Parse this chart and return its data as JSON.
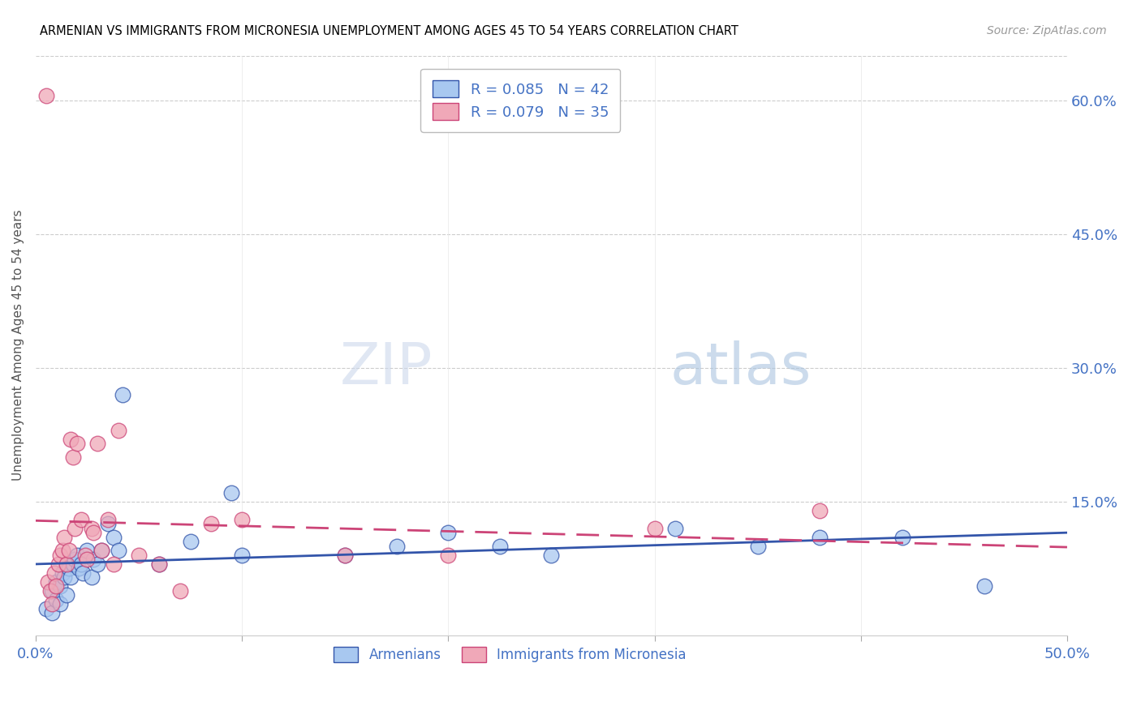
{
  "title": "ARMENIAN VS IMMIGRANTS FROM MICRONESIA UNEMPLOYMENT AMONG AGES 45 TO 54 YEARS CORRELATION CHART",
  "source": "Source: ZipAtlas.com",
  "ylabel": "Unemployment Among Ages 45 to 54 years",
  "xlim": [
    0.0,
    0.5
  ],
  "ylim": [
    0.0,
    0.65
  ],
  "xticks": [
    0.0,
    0.1,
    0.2,
    0.3,
    0.4,
    0.5
  ],
  "xtick_labels": [
    "0.0%",
    "",
    "",
    "",
    "",
    "50.0%"
  ],
  "ytick_labels_right": [
    "60.0%",
    "45.0%",
    "30.0%",
    "15.0%"
  ],
  "ytick_vals_right": [
    0.6,
    0.45,
    0.3,
    0.15
  ],
  "legend_color1": "#a8c8f0",
  "legend_color2": "#f0a8b8",
  "color_armenian": "#a8c8f0",
  "color_micronesia": "#f0a8b8",
  "trend_color_armenian": "#3355aa",
  "trend_color_micronesia": "#cc4477",
  "background_color": "#ffffff",
  "grid_color": "#cccccc",
  "axis_label_color": "#4472c4",
  "title_color": "#000000",
  "armenian_x": [
    0.005,
    0.008,
    0.008,
    0.01,
    0.01,
    0.012,
    0.012,
    0.013,
    0.014,
    0.015,
    0.015,
    0.016,
    0.017,
    0.018,
    0.019,
    0.02,
    0.021,
    0.022,
    0.023,
    0.025,
    0.027,
    0.028,
    0.03,
    0.032,
    0.035,
    0.038,
    0.04,
    0.042,
    0.06,
    0.075,
    0.095,
    0.1,
    0.15,
    0.175,
    0.2,
    0.225,
    0.25,
    0.31,
    0.35,
    0.38,
    0.42,
    0.46
  ],
  "armenian_y": [
    0.03,
    0.025,
    0.05,
    0.04,
    0.06,
    0.035,
    0.055,
    0.07,
    0.065,
    0.08,
    0.045,
    0.075,
    0.065,
    0.08,
    0.085,
    0.09,
    0.075,
    0.08,
    0.07,
    0.095,
    0.065,
    0.085,
    0.08,
    0.095,
    0.125,
    0.11,
    0.095,
    0.27,
    0.08,
    0.105,
    0.16,
    0.09,
    0.09,
    0.1,
    0.115,
    0.1,
    0.09,
    0.12,
    0.1,
    0.11,
    0.11,
    0.055
  ],
  "micronesia_x": [
    0.005,
    0.006,
    0.007,
    0.008,
    0.009,
    0.01,
    0.011,
    0.012,
    0.013,
    0.014,
    0.015,
    0.016,
    0.017,
    0.018,
    0.019,
    0.02,
    0.022,
    0.024,
    0.025,
    0.027,
    0.028,
    0.03,
    0.032,
    0.035,
    0.038,
    0.04,
    0.05,
    0.06,
    0.07,
    0.085,
    0.1,
    0.15,
    0.2,
    0.3,
    0.38
  ],
  "micronesia_y": [
    0.605,
    0.06,
    0.05,
    0.035,
    0.07,
    0.055,
    0.08,
    0.09,
    0.095,
    0.11,
    0.08,
    0.095,
    0.22,
    0.2,
    0.12,
    0.215,
    0.13,
    0.09,
    0.085,
    0.12,
    0.115,
    0.215,
    0.095,
    0.13,
    0.08,
    0.23,
    0.09,
    0.08,
    0.05,
    0.125,
    0.13,
    0.09,
    0.09,
    0.12,
    0.14
  ],
  "bottom_legend_labels": [
    "Armenians",
    "Immigrants from Micronesia"
  ],
  "bottom_legend_colors": [
    "#a8c8f0",
    "#f0a8b8"
  ],
  "watermark_zip_color": "#c8d4e8",
  "watermark_atlas_color": "#c8daf0"
}
